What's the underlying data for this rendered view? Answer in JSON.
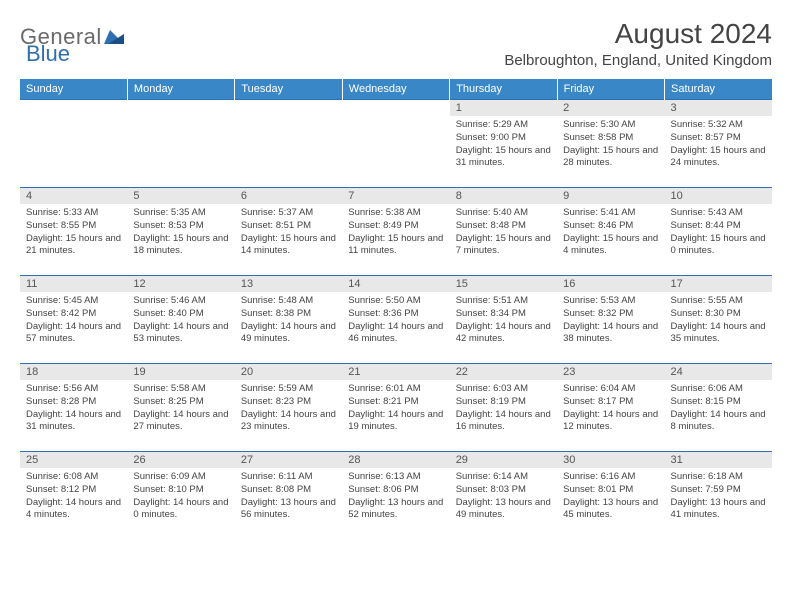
{
  "brand": {
    "part1": "General",
    "part2": "Blue"
  },
  "title": "August 2024",
  "location": "Belbroughton, England, United Kingdom",
  "day_headers": [
    "Sunday",
    "Monday",
    "Tuesday",
    "Wednesday",
    "Thursday",
    "Friday",
    "Saturday"
  ],
  "colors": {
    "header_bg": "#3a87c8",
    "header_text": "#ffffff",
    "daynum_bg": "#e8e8e8",
    "rule": "#2f6fb0",
    "logo_gray": "#6a6a6a",
    "logo_blue": "#2f6fb0"
  },
  "weeks": [
    [
      {
        "n": "",
        "lines": []
      },
      {
        "n": "",
        "lines": []
      },
      {
        "n": "",
        "lines": []
      },
      {
        "n": "",
        "lines": []
      },
      {
        "n": "1",
        "lines": [
          "Sunrise: 5:29 AM",
          "Sunset: 9:00 PM",
          "Daylight: 15 hours and 31 minutes."
        ]
      },
      {
        "n": "2",
        "lines": [
          "Sunrise: 5:30 AM",
          "Sunset: 8:58 PM",
          "Daylight: 15 hours and 28 minutes."
        ]
      },
      {
        "n": "3",
        "lines": [
          "Sunrise: 5:32 AM",
          "Sunset: 8:57 PM",
          "Daylight: 15 hours and 24 minutes."
        ]
      }
    ],
    [
      {
        "n": "4",
        "lines": [
          "Sunrise: 5:33 AM",
          "Sunset: 8:55 PM",
          "Daylight: 15 hours and 21 minutes."
        ]
      },
      {
        "n": "5",
        "lines": [
          "Sunrise: 5:35 AM",
          "Sunset: 8:53 PM",
          "Daylight: 15 hours and 18 minutes."
        ]
      },
      {
        "n": "6",
        "lines": [
          "Sunrise: 5:37 AM",
          "Sunset: 8:51 PM",
          "Daylight: 15 hours and 14 minutes."
        ]
      },
      {
        "n": "7",
        "lines": [
          "Sunrise: 5:38 AM",
          "Sunset: 8:49 PM",
          "Daylight: 15 hours and 11 minutes."
        ]
      },
      {
        "n": "8",
        "lines": [
          "Sunrise: 5:40 AM",
          "Sunset: 8:48 PM",
          "Daylight: 15 hours and 7 minutes."
        ]
      },
      {
        "n": "9",
        "lines": [
          "Sunrise: 5:41 AM",
          "Sunset: 8:46 PM",
          "Daylight: 15 hours and 4 minutes."
        ]
      },
      {
        "n": "10",
        "lines": [
          "Sunrise: 5:43 AM",
          "Sunset: 8:44 PM",
          "Daylight: 15 hours and 0 minutes."
        ]
      }
    ],
    [
      {
        "n": "11",
        "lines": [
          "Sunrise: 5:45 AM",
          "Sunset: 8:42 PM",
          "Daylight: 14 hours and 57 minutes."
        ]
      },
      {
        "n": "12",
        "lines": [
          "Sunrise: 5:46 AM",
          "Sunset: 8:40 PM",
          "Daylight: 14 hours and 53 minutes."
        ]
      },
      {
        "n": "13",
        "lines": [
          "Sunrise: 5:48 AM",
          "Sunset: 8:38 PM",
          "Daylight: 14 hours and 49 minutes."
        ]
      },
      {
        "n": "14",
        "lines": [
          "Sunrise: 5:50 AM",
          "Sunset: 8:36 PM",
          "Daylight: 14 hours and 46 minutes."
        ]
      },
      {
        "n": "15",
        "lines": [
          "Sunrise: 5:51 AM",
          "Sunset: 8:34 PM",
          "Daylight: 14 hours and 42 minutes."
        ]
      },
      {
        "n": "16",
        "lines": [
          "Sunrise: 5:53 AM",
          "Sunset: 8:32 PM",
          "Daylight: 14 hours and 38 minutes."
        ]
      },
      {
        "n": "17",
        "lines": [
          "Sunrise: 5:55 AM",
          "Sunset: 8:30 PM",
          "Daylight: 14 hours and 35 minutes."
        ]
      }
    ],
    [
      {
        "n": "18",
        "lines": [
          "Sunrise: 5:56 AM",
          "Sunset: 8:28 PM",
          "Daylight: 14 hours and 31 minutes."
        ]
      },
      {
        "n": "19",
        "lines": [
          "Sunrise: 5:58 AM",
          "Sunset: 8:25 PM",
          "Daylight: 14 hours and 27 minutes."
        ]
      },
      {
        "n": "20",
        "lines": [
          "Sunrise: 5:59 AM",
          "Sunset: 8:23 PM",
          "Daylight: 14 hours and 23 minutes."
        ]
      },
      {
        "n": "21",
        "lines": [
          "Sunrise: 6:01 AM",
          "Sunset: 8:21 PM",
          "Daylight: 14 hours and 19 minutes."
        ]
      },
      {
        "n": "22",
        "lines": [
          "Sunrise: 6:03 AM",
          "Sunset: 8:19 PM",
          "Daylight: 14 hours and 16 minutes."
        ]
      },
      {
        "n": "23",
        "lines": [
          "Sunrise: 6:04 AM",
          "Sunset: 8:17 PM",
          "Daylight: 14 hours and 12 minutes."
        ]
      },
      {
        "n": "24",
        "lines": [
          "Sunrise: 6:06 AM",
          "Sunset: 8:15 PM",
          "Daylight: 14 hours and 8 minutes."
        ]
      }
    ],
    [
      {
        "n": "25",
        "lines": [
          "Sunrise: 6:08 AM",
          "Sunset: 8:12 PM",
          "Daylight: 14 hours and 4 minutes."
        ]
      },
      {
        "n": "26",
        "lines": [
          "Sunrise: 6:09 AM",
          "Sunset: 8:10 PM",
          "Daylight: 14 hours and 0 minutes."
        ]
      },
      {
        "n": "27",
        "lines": [
          "Sunrise: 6:11 AM",
          "Sunset: 8:08 PM",
          "Daylight: 13 hours and 56 minutes."
        ]
      },
      {
        "n": "28",
        "lines": [
          "Sunrise: 6:13 AM",
          "Sunset: 8:06 PM",
          "Daylight: 13 hours and 52 minutes."
        ]
      },
      {
        "n": "29",
        "lines": [
          "Sunrise: 6:14 AM",
          "Sunset: 8:03 PM",
          "Daylight: 13 hours and 49 minutes."
        ]
      },
      {
        "n": "30",
        "lines": [
          "Sunrise: 6:16 AM",
          "Sunset: 8:01 PM",
          "Daylight: 13 hours and 45 minutes."
        ]
      },
      {
        "n": "31",
        "lines": [
          "Sunrise: 6:18 AM",
          "Sunset: 7:59 PM",
          "Daylight: 13 hours and 41 minutes."
        ]
      }
    ]
  ]
}
